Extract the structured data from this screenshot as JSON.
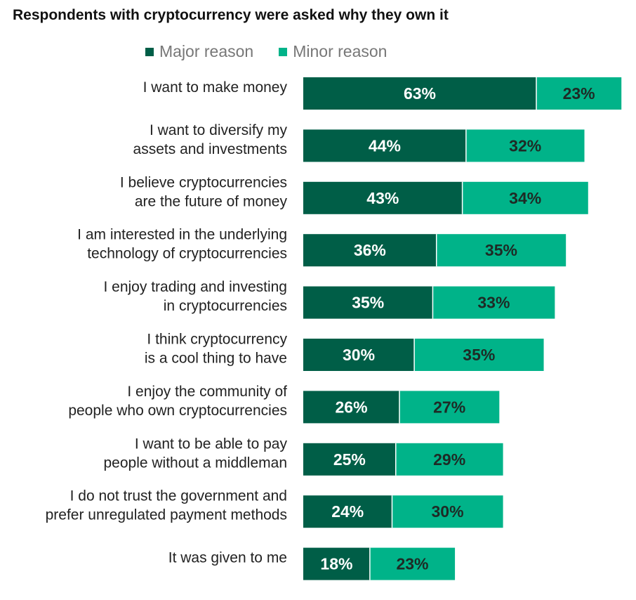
{
  "chart_data": {
    "type": "bar",
    "orientation": "horizontal",
    "stacked": true,
    "title": "Respondents with cryptocurrency were asked why they own it",
    "legend_position": "top",
    "series": [
      {
        "name": "Major reason",
        "color": "#005e47",
        "label_color": "#ffffff"
      },
      {
        "name": "Minor reason",
        "color": "#00b389",
        "label_color": "#1e2a25"
      }
    ],
    "categories": [
      {
        "lines": [
          "I want to make money"
        ],
        "values": [
          63,
          23
        ]
      },
      {
        "lines": [
          "I want to diversify my",
          "assets and investments"
        ],
        "values": [
          44,
          32
        ]
      },
      {
        "lines": [
          "I believe cryptocurrencies",
          "are the future of money"
        ],
        "values": [
          43,
          34
        ]
      },
      {
        "lines": [
          "I am interested in the underlying",
          "technology of cryptocurrencies"
        ],
        "values": [
          36,
          35
        ]
      },
      {
        "lines": [
          "I enjoy trading and investing",
          "in cryptocurrencies"
        ],
        "values": [
          35,
          33
        ]
      },
      {
        "lines": [
          "I think cryptocurrency",
          "is a cool thing to have"
        ],
        "values": [
          30,
          35
        ]
      },
      {
        "lines": [
          "I enjoy the community of",
          "people who own cryptocurrencies"
        ],
        "values": [
          26,
          27
        ]
      },
      {
        "lines": [
          "I want to be able to pay",
          "people without a middleman"
        ],
        "values": [
          25,
          29
        ]
      },
      {
        "lines": [
          "I do not trust the government and",
          "prefer unregulated payment methods"
        ],
        "values": [
          24,
          30
        ]
      },
      {
        "lines": [
          "It was given to me"
        ],
        "values": [
          18,
          23
        ]
      }
    ],
    "value_suffix": "%",
    "xlim": [
      0,
      86
    ],
    "grid": false
  }
}
